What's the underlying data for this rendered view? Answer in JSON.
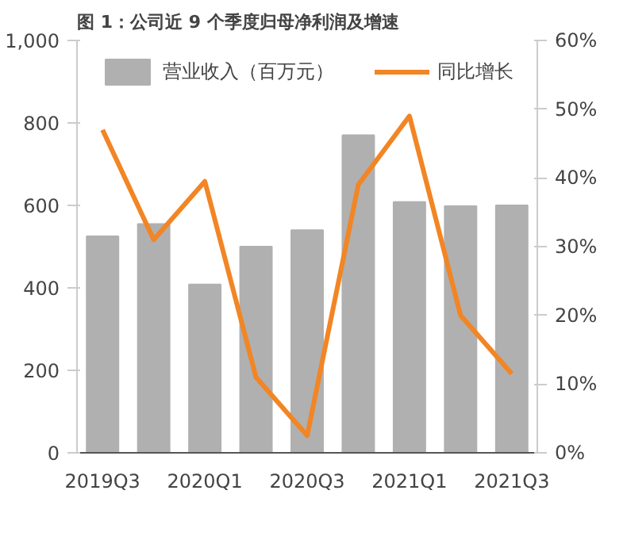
{
  "chart_data": {
    "type": "bar",
    "title": "图 1：公司近 9 个季度归母净利润及增速",
    "categories": [
      "2019Q3",
      null,
      "2020Q1",
      null,
      "2020Q3",
      null,
      "2021Q1",
      null,
      "2021Q3"
    ],
    "series": [
      {
        "name": "营业收入（百万元）",
        "color": "#b0b0b0",
        "values": [
          525,
          555,
          408,
          500,
          540,
          770,
          608,
          598,
          600
        ]
      },
      {
        "name": "同比增长",
        "type": "line",
        "axis": "y2",
        "color": "#f28524",
        "values": [
          47,
          31,
          39.5,
          11,
          2.5,
          39,
          49,
          20,
          11.5
        ]
      }
    ],
    "ylim": [
      0,
      1000
    ],
    "yticks": [
      0,
      {
        "value": 200,
        "label": "200"
      },
      {
        "value": 400,
        "label": "400"
      },
      {
        "value": 600,
        "label": "600"
      },
      {
        "value": 800,
        "label": "800"
      },
      {
        "value": 1000,
        "label": "1,000"
      }
    ],
    "y2lim": [
      0,
      60
    ],
    "y2ticks": [
      {
        "value": 0,
        "label": "0%"
      },
      {
        "value": 10,
        "label": "10%"
      },
      {
        "value": 20,
        "label": "20%"
      },
      {
        "value": 30,
        "label": "30%"
      },
      {
        "value": 40,
        "label": "40%"
      },
      {
        "value": 50,
        "label": "50%"
      },
      {
        "value": 60,
        "label": "60%"
      }
    ],
    "legend": "top",
    "grid": false,
    "marker": "none",
    "line_style": "solid"
  }
}
